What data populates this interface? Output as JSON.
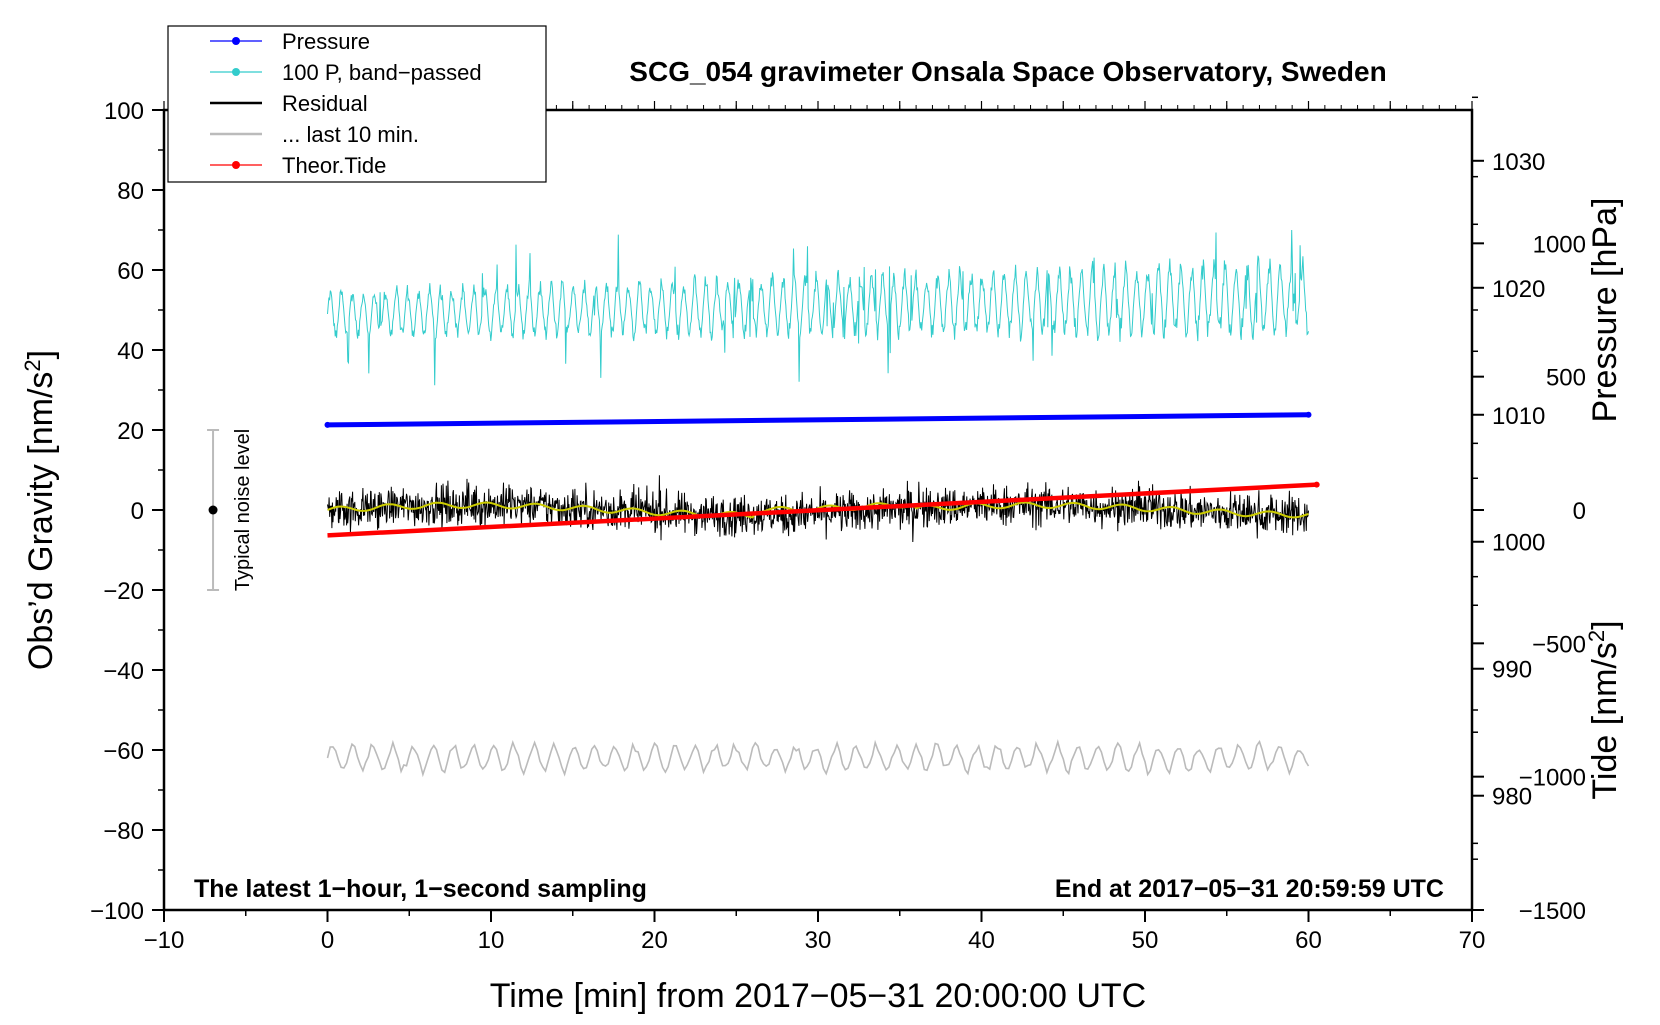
{
  "chart_data": {
    "type": "line",
    "title": "SCG_054 gravimeter Onsala Space Observatory, Sweden",
    "xlabel": "Time [min] from 2017−05−31 20:00:00 UTC",
    "ylabel": "Obs’d Gravity [nm/s²]",
    "ylabel_main": "Obs’d Gravity [nm/s",
    "ylabel_sup": "2",
    "ylabel_end": "]",
    "y2label": "Pressure [hPa]",
    "y3label": "Tide [nm/s²]",
    "y3label_main": "Tide [nm/s",
    "y3label_sup": "2",
    "y3label_end": "]",
    "xlim": [
      -10,
      70
    ],
    "ylim": [
      -100,
      100
    ],
    "pressure_lim": [
      971,
      1034
    ],
    "tide_lim": [
      -1500,
      1500
    ],
    "x_ticks": [
      {
        "value": -10,
        "label": "−10"
      },
      {
        "value": 0,
        "label": "0"
      },
      {
        "value": 10,
        "label": "10"
      },
      {
        "value": 20,
        "label": "20"
      },
      {
        "value": 30,
        "label": "30"
      },
      {
        "value": 40,
        "label": "40"
      },
      {
        "value": 50,
        "label": "50"
      },
      {
        "value": 60,
        "label": "60"
      },
      {
        "value": 70,
        "label": "70"
      }
    ],
    "y_ticks": [
      {
        "value": 100,
        "label": "100"
      },
      {
        "value": 80,
        "label": "80"
      },
      {
        "value": 60,
        "label": "60"
      },
      {
        "value": 40,
        "label": "40"
      },
      {
        "value": 20,
        "label": "20"
      },
      {
        "value": 0,
        "label": "0"
      },
      {
        "value": -20,
        "label": "−20"
      },
      {
        "value": -40,
        "label": "−40"
      },
      {
        "value": -60,
        "label": "−60"
      },
      {
        "value": -80,
        "label": "−80"
      },
      {
        "value": -100,
        "label": "−100"
      }
    ],
    "pressure_ticks": [
      {
        "value": 1030,
        "label": "1030"
      },
      {
        "value": 1020,
        "label": "1020"
      },
      {
        "value": 1010,
        "label": "1010"
      },
      {
        "value": 1000,
        "label": "1000"
      },
      {
        "value": 990,
        "label": "990"
      },
      {
        "value": 980,
        "label": "980"
      }
    ],
    "tide_ticks": [
      {
        "value": 1000,
        "label": "1000"
      },
      {
        "value": 500,
        "label": "500"
      },
      {
        "value": 0,
        "label": "0"
      },
      {
        "value": -500,
        "label": "−500"
      },
      {
        "value": -1000,
        "label": "−1000"
      },
      {
        "value": -1500,
        "label": "−1500"
      }
    ],
    "legend": [
      {
        "label": "Pressure",
        "color": "#0000ff",
        "marker": true
      },
      {
        "label": "100 P, band−passed",
        "color": "#33cccc",
        "marker": true
      },
      {
        "label": "Residual",
        "color": "#000000",
        "marker": false
      },
      {
        "label": "... last 10 min.",
        "color": "#bbbbbb",
        "marker": false
      },
      {
        "label": "Theor.Tide",
        "color": "#ff0000",
        "marker": true
      }
    ],
    "series": [
      {
        "name": "Pressure",
        "axis": "pressure",
        "color": "#0000ff",
        "x": [
          0,
          60
        ],
        "values": [
          1009.2,
          1010.0
        ]
      },
      {
        "name": "100 P, band−passed",
        "axis": "gravity",
        "color": "#33cccc",
        "x_range": [
          0,
          60
        ],
        "center": 49,
        "amplitude": 5,
        "extremes": [
          28,
          70
        ]
      },
      {
        "name": "Residual",
        "axis": "gravity",
        "color": "#000000",
        "x_range": [
          0,
          60
        ],
        "center": 0,
        "amplitude": 4,
        "extremes": [
          -8,
          9
        ]
      },
      {
        "name": "Residual smoothed",
        "axis": "gravity",
        "color": "#cccc00",
        "x_range": [
          0,
          60
        ],
        "center": 0,
        "amplitude": 1.5
      },
      {
        "name": "... last 10 min.",
        "axis": "gravity",
        "color": "#bbbbbb",
        "x_range": [
          0,
          60
        ],
        "center": -62,
        "amplitude": 3.5,
        "extremes": [
          -67,
          -55
        ]
      },
      {
        "name": "Theor.Tide",
        "axis": "tide",
        "color": "#ff0000",
        "x": [
          0,
          60.5
        ],
        "values": [
          -95,
          95
        ]
      }
    ],
    "noise_bar": {
      "x": -7,
      "center": 0,
      "low": -20,
      "high": 20,
      "label": "Typical noise level"
    },
    "annotations": {
      "bottom_left": "The latest 1−hour, 1−second sampling",
      "bottom_right": "End at 2017−05−31 20:59:59 UTC"
    }
  }
}
